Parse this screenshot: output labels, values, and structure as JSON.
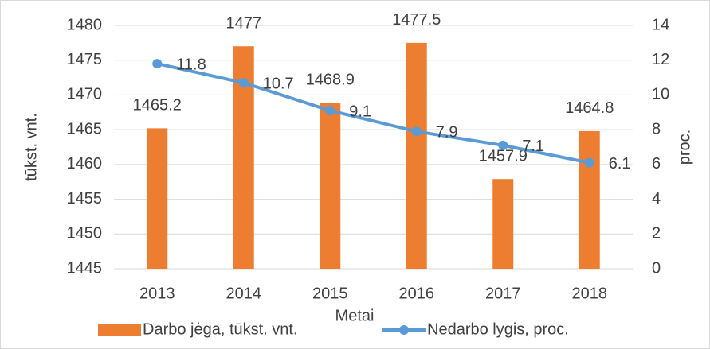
{
  "chart_data": {
    "type": "bar",
    "categories": [
      "2013",
      "2014",
      "2015",
      "2016",
      "2017",
      "2018"
    ],
    "xlabel": "Metai",
    "ylabel": "tūkst. vnt.",
    "y2label": "proc.",
    "ylim": [
      1445,
      1480
    ],
    "yticks": [
      1445,
      1450,
      1455,
      1460,
      1465,
      1470,
      1475,
      1480
    ],
    "y2lim": [
      0,
      14
    ],
    "y2ticks": [
      0,
      2,
      4,
      6,
      8,
      10,
      12,
      14
    ],
    "grid": true,
    "legend": "bottom",
    "series": [
      {
        "name": "Darbo jėga, tūkst. vnt.",
        "type": "bar",
        "color": "#ed7d31",
        "values": [
          1465.2,
          1477,
          1468.9,
          1477.5,
          1457.9,
          1464.8
        ]
      },
      {
        "name": "Nedarbo lygis, proc.",
        "type": "line",
        "axis": "y2",
        "color": "#5b9bd5",
        "values": [
          11.8,
          10.7,
          9.1,
          7.9,
          7.1,
          6.1
        ]
      }
    ]
  }
}
